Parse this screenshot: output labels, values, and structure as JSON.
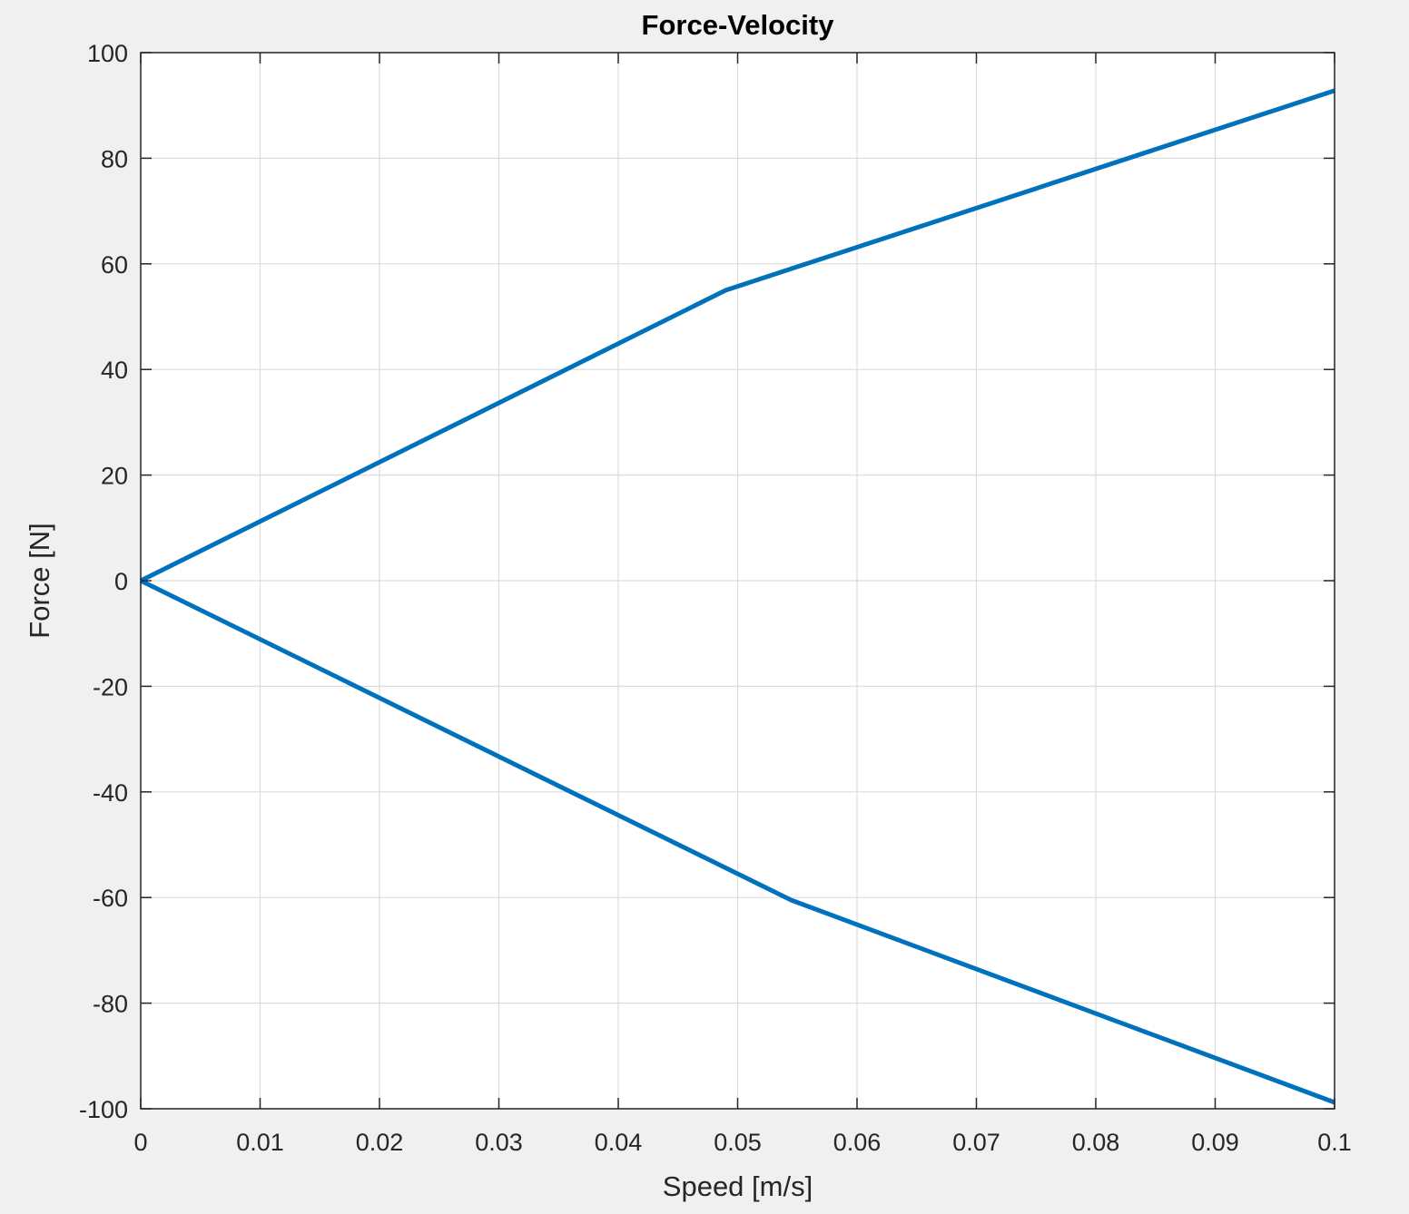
{
  "chart_data": {
    "type": "line",
    "title": "Force-Velocity",
    "xlabel": "Speed [m/s]",
    "ylabel": "Force [N]",
    "xlim": [
      0,
      0.1
    ],
    "ylim": [
      -100,
      100
    ],
    "xticks": [
      0,
      0.01,
      0.02,
      0.03,
      0.04,
      0.05,
      0.06,
      0.07,
      0.08,
      0.09,
      0.1
    ],
    "xtick_labels": [
      "0",
      "0.01",
      "0.02",
      "0.03",
      "0.04",
      "0.05",
      "0.06",
      "0.07",
      "0.08",
      "0.09",
      "0.1"
    ],
    "yticks": [
      -100,
      -80,
      -60,
      -40,
      -20,
      0,
      20,
      40,
      60,
      80,
      100
    ],
    "ytick_labels": [
      "-100",
      "-80",
      "-60",
      "-40",
      "-20",
      "0",
      "20",
      "40",
      "60",
      "80",
      "100"
    ],
    "grid": true,
    "series": [
      {
        "x": [
          0,
          0.049,
          0.1
        ],
        "y": [
          0,
          55,
          92.8
        ],
        "color": "#0072bd"
      },
      {
        "x": [
          0,
          0.0545,
          0.1
        ],
        "y": [
          0,
          -60.5,
          -98.8
        ],
        "color": "#0072bd"
      }
    ]
  }
}
